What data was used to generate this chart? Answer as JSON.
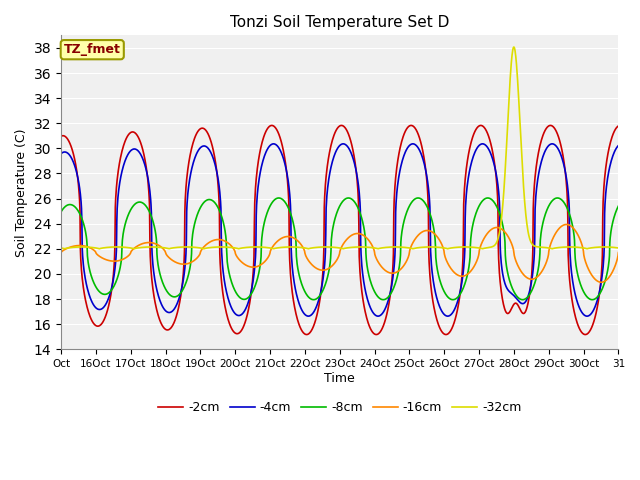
{
  "title": "Tonzi Soil Temperature Set D",
  "xlabel": "Time",
  "ylabel": "Soil Temperature (C)",
  "annotation": "TZ_fmet",
  "ylim": [
    14,
    39
  ],
  "yticks": [
    14,
    16,
    18,
    20,
    22,
    24,
    26,
    28,
    30,
    32,
    34,
    36,
    38
  ],
  "xtick_labels": [
    "Oct",
    "16Oct",
    "17Oct",
    "18Oct",
    "19Oct",
    "20Oct",
    "21Oct",
    "22Oct",
    "23Oct",
    "24Oct",
    "25Oct",
    "26Oct",
    "27Oct",
    "28Oct",
    "29Oct",
    "30Oct",
    "31"
  ],
  "series": {
    "-2cm": {
      "color": "#cc0000",
      "lw": 1.2
    },
    "-4cm": {
      "color": "#0000cc",
      "lw": 1.2
    },
    "-8cm": {
      "color": "#00bb00",
      "lw": 1.2
    },
    "-16cm": {
      "color": "#ff8800",
      "lw": 1.2
    },
    "-32cm": {
      "color": "#dddd00",
      "lw": 1.2
    }
  },
  "background_color": "#e8e8e8",
  "plot_bg": "#f0f0f0",
  "legend_order": [
    "-2cm",
    "-4cm",
    "-8cm",
    "-16cm",
    "-32cm"
  ],
  "figsize": [
    6.4,
    4.8
  ],
  "dpi": 100
}
